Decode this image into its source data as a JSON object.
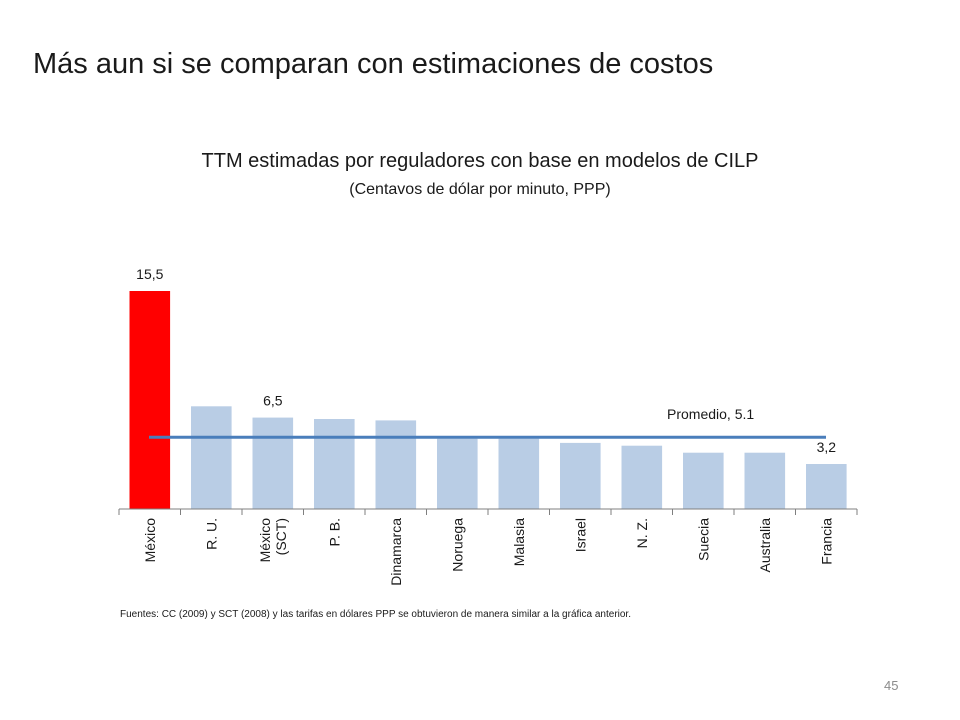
{
  "slide": {
    "title": "Más aun si se comparan con estimaciones de costos",
    "source_note": "Fuentes: CC (2009) y SCT (2008) y las tarifas en dólares PPP se obtuvieron de manera similar a la gráfica anterior.",
    "page_number": "45"
  },
  "colors": {
    "highlight_bar": "#ff0000",
    "bar": "#b9cde5",
    "average_line": "#4a7ebb",
    "axis": "#7f7f7f"
  },
  "chart_data": {
    "type": "bar",
    "title": "TTM estimadas por reguladores con base en modelos de CILP",
    "subtitle": "(Centavos de dólar por minuto, PPP)",
    "categories": [
      "México",
      "R. U.",
      "México (SCT)",
      "P. B.",
      "Dinamarca",
      "Noruega",
      "Malasia",
      "Israel",
      "N. Z.",
      "Suecia",
      "Australia",
      "Francia"
    ],
    "category_lines": [
      [
        "México"
      ],
      [
        "R. U."
      ],
      [
        "México",
        "(SCT)"
      ],
      [
        "P. B."
      ],
      [
        "Dinamarca"
      ],
      [
        "Noruega"
      ],
      [
        "Malasia"
      ],
      [
        "Israel"
      ],
      [
        "N. Z."
      ],
      [
        "Suecia"
      ],
      [
        "Australia"
      ],
      [
        "Francia"
      ]
    ],
    "values": [
      15.5,
      7.3,
      6.5,
      6.4,
      6.3,
      5.0,
      5.0,
      4.7,
      4.5,
      4.0,
      4.0,
      3.2
    ],
    "data_labels": [
      "15,5",
      "",
      "6,5",
      "",
      "",
      "",
      "",
      "",
      "",
      "",
      "",
      "3,2"
    ],
    "highlight_index": 0,
    "average": {
      "label": "Promedio, 5.1",
      "value": 5.1
    },
    "ylim": [
      0,
      16
    ],
    "xlabel": "",
    "ylabel": "",
    "grid": false,
    "legend": "none"
  }
}
